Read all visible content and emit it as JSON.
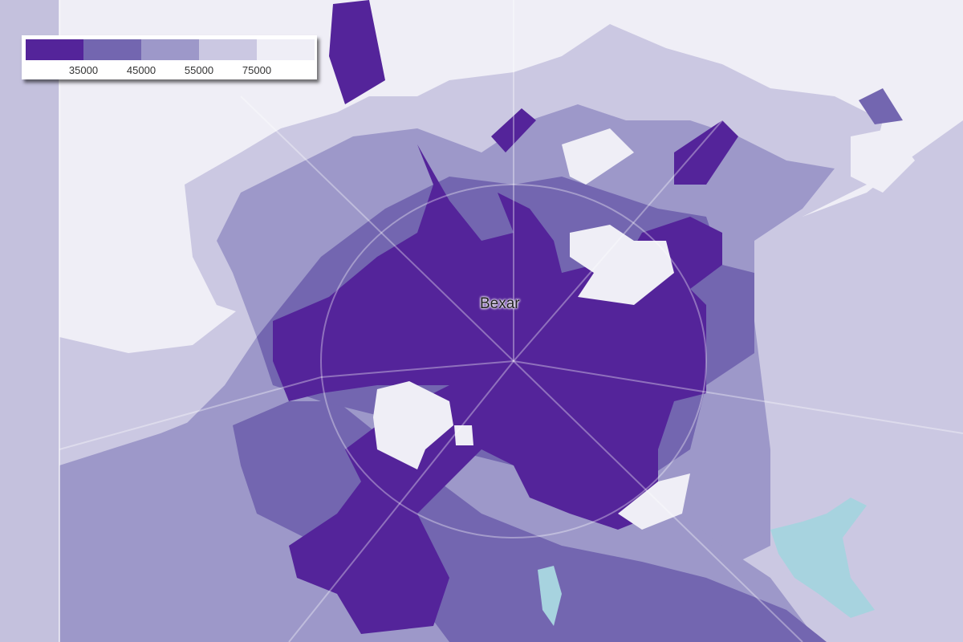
{
  "map": {
    "place_label": "Bexar",
    "colors": {
      "class_1": "#54249a",
      "class_2": "#7366b0",
      "class_3": "#9d98c9",
      "class_4": "#cbc8e2",
      "class_5": "#efeef6",
      "water": "#a7d3df"
    }
  },
  "legend": {
    "breaks": [
      "35000",
      "45000",
      "55000",
      "75000"
    ],
    "colors": [
      "#54249a",
      "#7366b0",
      "#9d98c9",
      "#cbc8e2",
      "#efeef6"
    ]
  }
}
